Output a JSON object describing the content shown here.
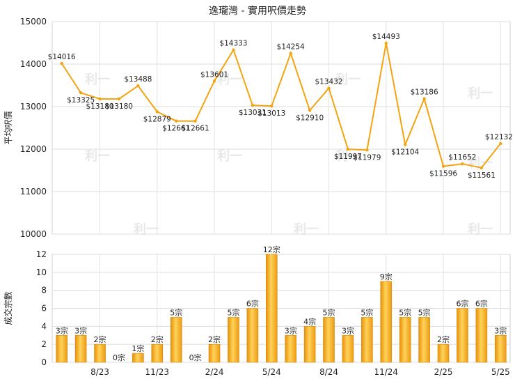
{
  "title": "逸瓏灣 - 實用呎價走勢",
  "watermark": "利一",
  "chart_data": [
    {
      "type": "line",
      "ylabel": "平均呎價",
      "ylim": [
        10000,
        15000
      ],
      "yticks": [
        10000,
        11000,
        12000,
        13000,
        14000,
        15000
      ],
      "grid": true,
      "color": "#f5a30f",
      "series": [
        {
          "values": [
            14016,
            13325,
            13180,
            13180,
            13488,
            12879,
            12661,
            12661,
            13601,
            14333,
            13031,
            13013,
            14254,
            12910,
            13432,
            11997,
            11979,
            14493,
            12104,
            13186,
            11596,
            11652,
            11561,
            12132
          ],
          "labels": [
            "$14016",
            "$13325",
            "$13180",
            "$13180",
            "$13488",
            "$12879",
            "$12661",
            "$12661",
            "$13601",
            "$14333",
            "$13031",
            "$13013",
            "$14254",
            "$12910",
            "$13432",
            "$11997",
            "$11979",
            "$14493",
            "$12104",
            "$13186",
            "$11596",
            "$11652",
            "$11561",
            "$12132"
          ]
        }
      ]
    },
    {
      "type": "bar",
      "ylabel": "成交宗數",
      "ylim": [
        0,
        12
      ],
      "yticks": [
        0,
        2,
        4,
        6,
        8,
        10,
        12
      ],
      "grid": true,
      "color": "#f5a30f",
      "categories": [
        "",
        "",
        "8/23",
        "",
        "",
        "11/23",
        "",
        "",
        "2/24",
        "",
        "",
        "5/24",
        "",
        "",
        "8/24",
        "",
        "",
        "11/24",
        "",
        "",
        "2/25",
        "",
        "",
        "5/25"
      ],
      "values": [
        3,
        3,
        2,
        0,
        1,
        2,
        5,
        0,
        2,
        5,
        6,
        12,
        3,
        4,
        5,
        3,
        5,
        9,
        5,
        5,
        2,
        6,
        6,
        3
      ],
      "labels": [
        "3宗",
        "3宗",
        "2宗",
        "0宗",
        "1宗",
        "2宗",
        "5宗",
        "0宗",
        "2宗",
        "5宗",
        "6宗",
        "12宗",
        "3宗",
        "4宗",
        "5宗",
        "3宗",
        "5宗",
        "9宗",
        "5宗",
        "5宗",
        "2宗",
        "6宗",
        "6宗",
        "3宗"
      ]
    }
  ]
}
